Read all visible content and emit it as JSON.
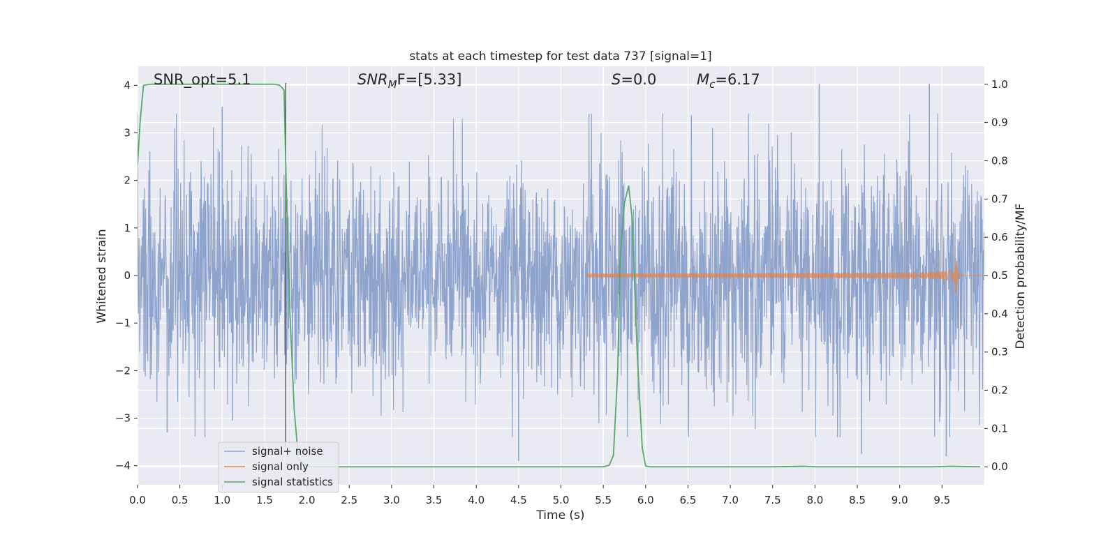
{
  "chart_data": {
    "type": "line",
    "title": "stats at each timestep for test data 737 [signal=1]",
    "xlabel": "Time (s)",
    "ylabel_left": "Whitened strain",
    "ylabel_right": "Detection probability/MF",
    "xlim": [
      0.0,
      10.0
    ],
    "ylim_left": [
      -4.4,
      4.4
    ],
    "ylim_right": [
      -0.047,
      1.047
    ],
    "x_ticks": [
      "0.0",
      "0.5",
      "1.0",
      "1.5",
      "2.0",
      "2.5",
      "3.0",
      "3.5",
      "4.0",
      "4.5",
      "5.0",
      "5.5",
      "6.0",
      "6.5",
      "7.0",
      "7.5",
      "8.0",
      "8.5",
      "9.0",
      "9.5"
    ],
    "y_ticks_left": [
      "4",
      "3",
      "2",
      "1",
      "0",
      "−1",
      "−2",
      "−3",
      "−4"
    ],
    "y_ticks_right": [
      "1.0",
      "0.9",
      "0.8",
      "0.7",
      "0.6",
      "0.5",
      "0.4",
      "0.3",
      "0.2",
      "0.1",
      "0.0"
    ],
    "grid": true,
    "legend_position": "lower-left",
    "annotations": {
      "snr_opt": "SNR_opt=5.1",
      "snr_mf_sym": "SNR",
      "snr_mf_sub": "M",
      "snr_mf_rest": "F=[5.33]",
      "s_sym": "S",
      "s_rest": "=0.0",
      "mc_sym": "M",
      "mc_sub": "c",
      "mc_rest": "=6.17"
    },
    "marker_line_x": 1.75,
    "series": [
      {
        "name": "signal+ noise",
        "color": "#8fa4cd",
        "axis": "left",
        "description_values": "white noise, amplitude envelope about ±2 with spikes up to ±4",
        "approx_abs_envelope": 2.0,
        "max_spikes": [
          [
            1.0,
            3.55
          ],
          [
            8.05,
            4.03
          ],
          [
            9.35,
            4.03
          ],
          [
            0.35,
            -3.3
          ],
          [
            1.12,
            -3.05
          ],
          [
            8.55,
            -3.75
          ],
          [
            9.55,
            -3.8
          ],
          [
            4.5,
            -3.9
          ]
        ]
      },
      {
        "name": "signal only",
        "color": "#dd8452",
        "axis": "left",
        "chirp_start": 5.3,
        "chirp_peak_time": 9.66,
        "chirp_peak_amplitude": 0.62
      },
      {
        "name": "signal statistics",
        "color": "#55a868",
        "axis": "right",
        "x": [
          0.0,
          0.03,
          0.07,
          0.15,
          0.3,
          0.5,
          1.0,
          1.5,
          1.62,
          1.68,
          1.73,
          1.76,
          1.8,
          1.85,
          1.9,
          2.0,
          2.5,
          3.0,
          4.0,
          5.0,
          5.5,
          5.57,
          5.62,
          5.67,
          5.7,
          5.75,
          5.8,
          5.84,
          5.9,
          5.96,
          6.0,
          6.05,
          6.5,
          7.0,
          7.5,
          7.87,
          8.0,
          8.5,
          9.0,
          9.2,
          9.4,
          9.6,
          9.95
        ],
        "y": [
          0.79,
          0.9,
          0.997,
          1.0,
          1.0,
          1.0,
          1.0,
          1.0,
          1.0,
          0.997,
          0.985,
          0.7,
          0.4,
          0.15,
          0.02,
          0.0,
          0.0,
          0.0,
          0.0,
          0.0,
          0.0,
          0.004,
          0.03,
          0.25,
          0.55,
          0.69,
          0.735,
          0.65,
          0.3,
          0.05,
          0.002,
          0.0,
          0.0,
          0.0,
          0.0,
          0.0015,
          0.0,
          0.0,
          0.0,
          0.0,
          0.0,
          0.0015,
          0.0
        ]
      }
    ]
  }
}
